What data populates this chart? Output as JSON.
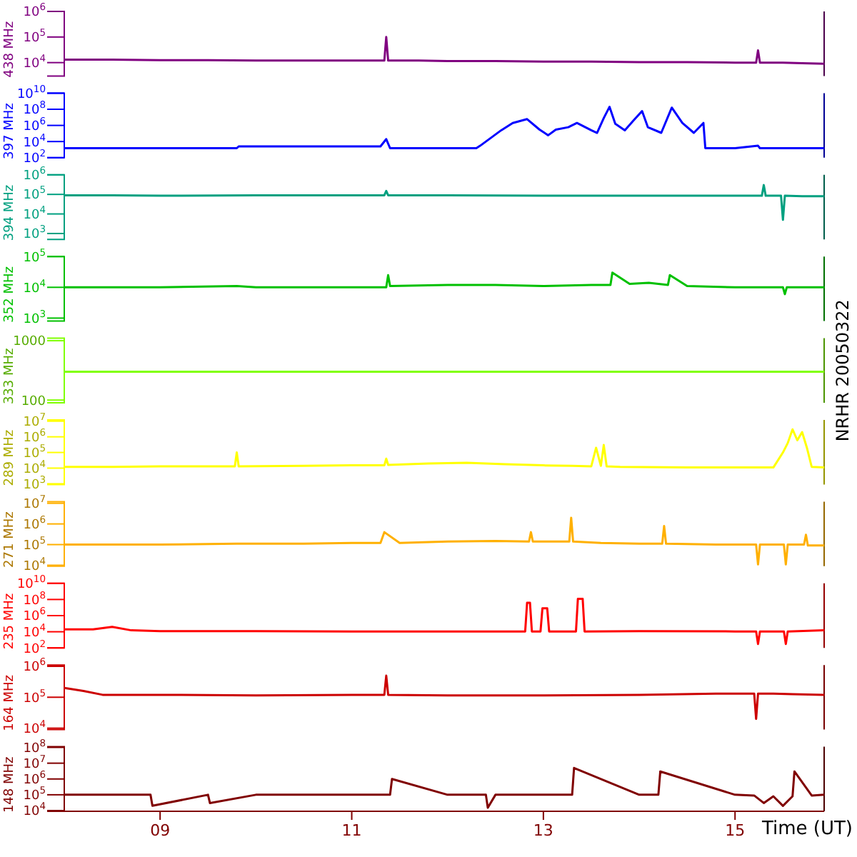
{
  "chart_data": [
    {
      "type": "line",
      "ylabel": "438 MHz",
      "color": "#800080",
      "log": true,
      "ylim": [
        3000,
        1000000
      ],
      "yticks": [
        {
          "value": 10000,
          "label": "10$^{4}$"
        },
        {
          "value": 100000,
          "label": "10$^{5}$"
        },
        {
          "value": 1000000,
          "label": "10$^{6}$"
        }
      ],
      "xlim": [
        8,
        15.93
      ],
      "tick_labels": "y",
      "x": [
        8,
        8.5,
        9,
        9.5,
        10,
        10.5,
        11,
        11.34,
        11.36,
        11.38,
        11.7,
        12,
        12.5,
        13,
        13.5,
        14,
        14.5,
        15,
        15.22,
        15.24,
        15.26,
        15.5,
        15.7,
        15.93
      ],
      "values": [
        13000,
        13000,
        12500,
        12500,
        12000,
        12000,
        12000,
        12000,
        100000,
        12000,
        12000,
        11500,
        11500,
        11000,
        11000,
        10500,
        10500,
        10000,
        10000,
        30000,
        10000,
        10000,
        9500,
        9000
      ]
    },
    {
      "type": "line",
      "ylabel": "397 MHz",
      "color": "#0000ff",
      "log": true,
      "ylim": [
        100,
        10000000000
      ],
      "yticks": [
        {
          "value": 100,
          "label": "10$^{2}$"
        },
        {
          "value": 10000,
          "label": "10$^{4}$"
        },
        {
          "value": 1000000,
          "label": "10$^{6}$"
        },
        {
          "value": 100000000,
          "label": "10$^{8}$"
        },
        {
          "value": 10000000000,
          "label": "10$^{10}$"
        }
      ],
      "xlim": [
        8,
        15.93
      ],
      "tick_labels": "y",
      "x": [
        8,
        9,
        9.8,
        9.82,
        10.5,
        11.3,
        11.36,
        11.4,
        12,
        12.3,
        12.34,
        12.56,
        12.68,
        12.83,
        12.96,
        13.05,
        13.13,
        13.26,
        13.35,
        13.5,
        13.56,
        13.63,
        13.69,
        13.75,
        13.85,
        13.94,
        14.03,
        14.09,
        14.23,
        14.34,
        14.45,
        14.57,
        14.67,
        14.69,
        15,
        15.24,
        15.26,
        15.5,
        15.93
      ],
      "values": [
        1500,
        1500,
        1500,
        2500,
        2500,
        2500,
        20000,
        1500,
        1500,
        1500,
        3000,
        250000,
        2000000,
        6000000,
        300000,
        60000,
        300000,
        600000,
        2000000,
        250000,
        120000,
        8000000,
        200000000,
        1600000,
        250000,
        4000000,
        60000000,
        600000,
        120000,
        160000000,
        2000000,
        120000,
        2000000,
        1500,
        1500,
        3000,
        1500,
        1500,
        1500
      ]
    },
    {
      "type": "line",
      "ylabel": "394 MHz",
      "color": "#00a080",
      "log": true,
      "ylim": [
        500,
        1000000
      ],
      "yticks": [
        {
          "value": 1000,
          "label": "10$^{3}$"
        },
        {
          "value": 10000,
          "label": "10$^{4}$"
        },
        {
          "value": 100000,
          "label": "10$^{5}$"
        },
        {
          "value": 1000000,
          "label": "10$^{6}$"
        }
      ],
      "xlim": [
        8,
        15.93
      ],
      "tick_labels": "y",
      "x": [
        8,
        8.5,
        9,
        10,
        11,
        11.34,
        11.36,
        11.38,
        12,
        13,
        14,
        15,
        15.28,
        15.3,
        15.32,
        15.48,
        15.5,
        15.52,
        15.7,
        15.93
      ],
      "values": [
        90000,
        90000,
        85000,
        90000,
        90000,
        90000,
        150000,
        90000,
        90000,
        85000,
        85000,
        85000,
        85000,
        300000,
        85000,
        85000,
        5000,
        85000,
        80000,
        80000
      ]
    },
    {
      "type": "line",
      "ylabel": "352 MHz",
      "color": "#00c000",
      "log": true,
      "ylim": [
        800,
        100000
      ],
      "yticks": [
        {
          "value": 1000,
          "label": "10$^{3}$"
        },
        {
          "value": 10000,
          "label": "10$^{4}$"
        },
        {
          "value": 100000,
          "label": "10$^{5}$"
        }
      ],
      "xlim": [
        8,
        15.93
      ],
      "tick_labels": "y",
      "x": [
        8,
        9,
        9.8,
        10,
        11,
        11.36,
        11.38,
        11.4,
        12,
        12.5,
        13,
        13.5,
        13.7,
        13.72,
        13.9,
        14.1,
        14.3,
        14.32,
        14.5,
        15,
        15.5,
        15.52,
        15.54,
        15.93
      ],
      "values": [
        10000,
        10000,
        11000,
        10000,
        10000,
        10000,
        25000,
        11000,
        12000,
        12000,
        11000,
        12000,
        12000,
        30000,
        13000,
        14000,
        12000,
        25000,
        11000,
        10000,
        10000,
        6000,
        10000,
        10000
      ]
    },
    {
      "type": "line",
      "ylabel": "333 MHz",
      "color": "#80ff00",
      "log": true,
      "ylim": [
        90,
        1100
      ],
      "yticks": [
        100,
        1000
      ],
      "xlim": [
        8,
        15.93
      ],
      "tick_labels": "y",
      "annotations": [
        "NRHR 20050322"
      ],
      "x": [
        8,
        12,
        15.93
      ],
      "values": [
        300,
        300,
        300
      ]
    },
    {
      "type": "line",
      "ylabel": "289 MHz",
      "color": "#ffff00",
      "log": true,
      "ylim": [
        900,
        12000000
      ],
      "yticks": [
        {
          "value": 1000,
          "label": "10$^{3}$"
        },
        {
          "value": 10000,
          "label": "10$^{4}$"
        },
        {
          "value": 100000,
          "label": "10$^{5}$"
        },
        {
          "value": 1000000,
          "label": "10$^{6}$"
        },
        {
          "value": 10000000,
          "label": "10$^{7}$"
        }
      ],
      "xlim": [
        8,
        15.93
      ],
      "tick_labels": "y",
      "x": [
        8,
        8.5,
        9,
        9.5,
        9.78,
        9.8,
        9.82,
        10.5,
        11,
        11.34,
        11.36,
        11.38,
        11.8,
        12.2,
        12.6,
        13,
        13.3,
        13.5,
        13.55,
        13.6,
        13.63,
        13.66,
        13.8,
        14.5,
        15,
        15.2,
        15.4,
        15.5,
        15.55,
        15.6,
        15.65,
        15.7,
        15.75,
        15.8,
        15.93
      ],
      "values": [
        12000,
        12000,
        13000,
        13000,
        13000,
        100000,
        13000,
        14000,
        15000,
        15000,
        40000,
        16000,
        20000,
        22000,
        18000,
        15000,
        14000,
        13000,
        200000,
        14000,
        300000,
        13000,
        12000,
        11000,
        11000,
        11000,
        11000,
        100000,
        400000,
        3000000,
        600000,
        2000000,
        200000,
        12000,
        11000
      ]
    },
    {
      "type": "line",
      "ylabel": "271 MHz",
      "color": "#ffb000",
      "log": true,
      "ylim": [
        9000,
        12000000
      ],
      "yticks": [
        {
          "value": 10000,
          "label": "10$^{4}$"
        },
        {
          "value": 100000,
          "label": "10$^{5}$"
        },
        {
          "value": 1000000,
          "label": "10$^{6}$"
        },
        {
          "value": 10000000,
          "label": "10$^{7}$"
        }
      ],
      "xlim": [
        8,
        15.93
      ],
      "tick_labels": "y",
      "x": [
        8,
        9,
        9.8,
        10.5,
        11,
        11.3,
        11.34,
        11.5,
        12,
        12.5,
        12.85,
        12.87,
        12.89,
        13,
        13.27,
        13.29,
        13.31,
        13.6,
        14,
        14.24,
        14.26,
        14.28,
        14.8,
        15.22,
        15.24,
        15.26,
        15.51,
        15.53,
        15.55,
        15.72,
        15.74,
        15.76,
        15.93
      ],
      "values": [
        100000,
        100000,
        110000,
        110000,
        120000,
        120000,
        400000,
        120000,
        140000,
        150000,
        140000,
        400000,
        140000,
        140000,
        140000,
        2000000,
        140000,
        120000,
        110000,
        110000,
        800000,
        110000,
        100000,
        100000,
        11000,
        100000,
        100000,
        11000,
        100000,
        100000,
        300000,
        90000,
        90000
      ]
    },
    {
      "type": "line",
      "ylabel": "235 MHz",
      "color": "#ff0000",
      "log": true,
      "ylim": [
        100,
        10000000000
      ],
      "yticks": [
        {
          "value": 100,
          "label": "10$^{2}$"
        },
        {
          "value": 10000,
          "label": "10$^{4}$"
        },
        {
          "value": 1000000,
          "label": "10$^{6}$"
        },
        {
          "value": 100000000,
          "label": "10$^{8}$"
        },
        {
          "value": 10000000000,
          "label": "10$^{10}$"
        }
      ],
      "xlim": [
        8,
        15.93
      ],
      "tick_labels": "y",
      "x": [
        8,
        8.3,
        8.5,
        8.7,
        9,
        10,
        11,
        12,
        12.5,
        12.81,
        12.83,
        12.86,
        12.88,
        12.97,
        12.99,
        13.04,
        13.06,
        13.34,
        13.36,
        13.41,
        13.43,
        14,
        15,
        15.22,
        15.24,
        15.26,
        15.51,
        15.53,
        15.55,
        15.93
      ],
      "values": [
        20000,
        20000,
        40000,
        15000,
        12000,
        12000,
        11000,
        11000,
        11000,
        11000,
        40000000,
        40000000,
        11000,
        11000,
        8000000,
        8000000,
        11000,
        11000,
        120000000,
        120000000,
        11000,
        12000,
        11000,
        11000,
        300,
        11000,
        11000,
        300,
        11000,
        15000
      ]
    },
    {
      "type": "line",
      "ylabel": "164 MHz",
      "color": "#cc0000",
      "log": true,
      "ylim": [
        9000,
        1100000
      ],
      "yticks": [
        {
          "value": 10000,
          "label": "10$^{4}$"
        },
        {
          "value": 100000,
          "label": "10$^{5}$"
        },
        {
          "value": 1000000,
          "label": "10$^{6}$"
        }
      ],
      "xlim": [
        8,
        15.93
      ],
      "tick_labels": "y",
      "x": [
        8,
        8.2,
        8.4,
        9,
        10,
        11,
        11.34,
        11.36,
        11.38,
        12,
        13,
        14,
        14.8,
        15,
        15.2,
        15.22,
        15.24,
        15.4,
        15.6,
        15.93
      ],
      "values": [
        200000,
        160000,
        120000,
        120000,
        115000,
        120000,
        120000,
        500000,
        120000,
        115000,
        115000,
        120000,
        130000,
        130000,
        130000,
        20000,
        130000,
        130000,
        125000,
        120000
      ]
    },
    {
      "type": "line",
      "ylabel": "148 MHz",
      "xlabel": "Time (UT)",
      "color": "#800000",
      "log": true,
      "ylim": [
        9000,
        110000000
      ],
      "yticks": [
        {
          "value": 10000,
          "label": "10$^{4}$"
        },
        {
          "value": 100000,
          "label": "10$^{5}$"
        },
        {
          "value": 1000000,
          "label": "10$^{6}$"
        },
        {
          "value": 10000000,
          "label": "10$^{7}$"
        },
        {
          "value": 100000000,
          "label": "10$^{8}$"
        }
      ],
      "xlim": [
        8,
        15.93
      ],
      "xticks": [
        {
          "value": 9,
          "label": "09"
        },
        11,
        13,
        15
      ],
      "x": [
        8,
        8.5,
        8.9,
        8.92,
        9.5,
        9.52,
        10,
        11,
        11.4,
        11.42,
        12,
        12.4,
        12.42,
        12.5,
        13,
        13.3,
        13.32,
        14,
        14.2,
        14.22,
        15,
        15.2,
        15.3,
        15.4,
        15.5,
        15.6,
        15.62,
        15.8,
        15.93
      ],
      "values": [
        100000,
        100000,
        100000,
        20000,
        100000,
        30000,
        100000,
        100000,
        100000,
        1000000,
        100000,
        100000,
        15000,
        100000,
        100000,
        100000,
        5000000,
        100000,
        100000,
        3000000,
        100000,
        90000,
        30000,
        80000,
        20000,
        80000,
        3000000,
        90000,
        100000
      ]
    }
  ]
}
